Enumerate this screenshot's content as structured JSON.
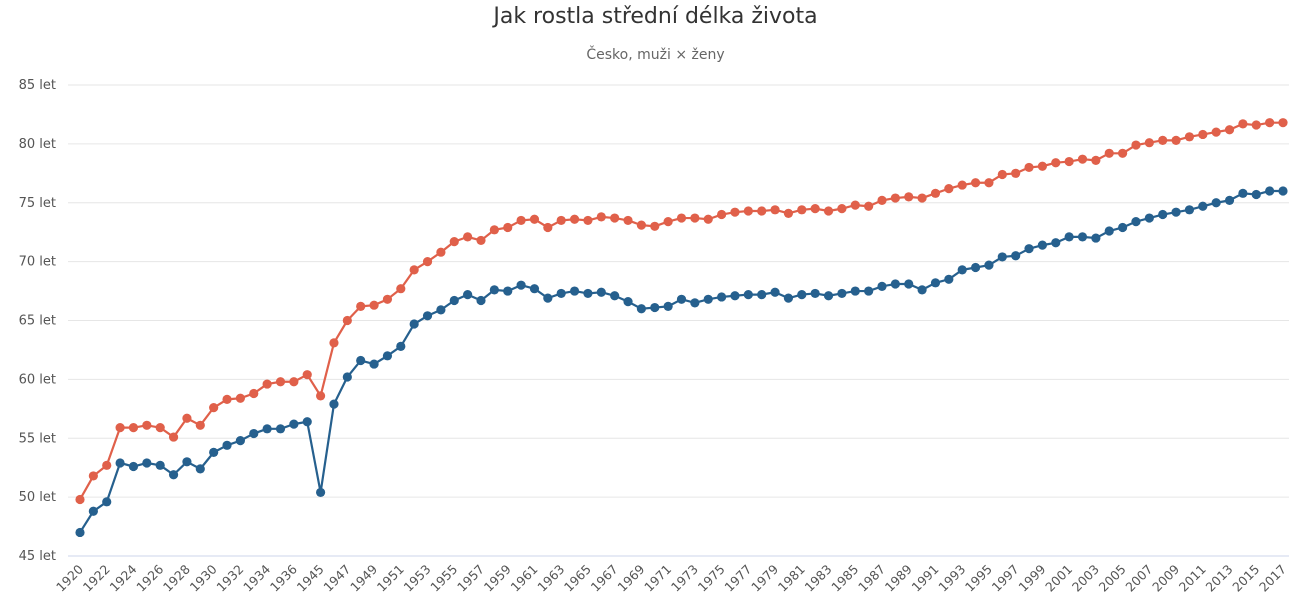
{
  "chart_data": {
    "type": "line",
    "title": "Jak rostla střední délka života",
    "subtitle": "Česko, muži × ženy",
    "y_unit_suffix": " let",
    "ylim": [
      45,
      85
    ],
    "yticks": [
      45,
      50,
      55,
      60,
      65,
      70,
      75,
      80,
      85
    ],
    "x": [
      "1920",
      "1921",
      "1922",
      "1923",
      "1924",
      "1925",
      "1926",
      "1927",
      "1928",
      "1929",
      "1930",
      "1931",
      "1932",
      "1933",
      "1934",
      "1935",
      "1936",
      "1937",
      "1945",
      "1946",
      "1947",
      "1948",
      "1949",
      "1950",
      "1951",
      "1952",
      "1953",
      "1954",
      "1955",
      "1956",
      "1957",
      "1958",
      "1959",
      "1960",
      "1961",
      "1962",
      "1963",
      "1964",
      "1965",
      "1966",
      "1967",
      "1968",
      "1969",
      "1970",
      "1971",
      "1972",
      "1973",
      "1974",
      "1975",
      "1976",
      "1977",
      "1978",
      "1979",
      "1980",
      "1981",
      "1982",
      "1983",
      "1984",
      "1985",
      "1986",
      "1987",
      "1988",
      "1989",
      "1990",
      "1991",
      "1992",
      "1993",
      "1994",
      "1995",
      "1996",
      "1997",
      "1998",
      "1999",
      "2000",
      "2001",
      "2002",
      "2003",
      "2004",
      "2005",
      "2006",
      "2007",
      "2008",
      "2009",
      "2010",
      "2011",
      "2012",
      "2013",
      "2014",
      "2015",
      "2016",
      "2017"
    ],
    "x_tick_labels": [
      "1920",
      "1922",
      "1924",
      "1926",
      "1928",
      "1930",
      "1932",
      "1934",
      "1936",
      "1945",
      "1947",
      "1949",
      "1951",
      "1953",
      "1955",
      "1957",
      "1959",
      "1961",
      "1963",
      "1965",
      "1967",
      "1969",
      "1971",
      "1973",
      "1975",
      "1977",
      "1979",
      "1981",
      "1983",
      "1985",
      "1987",
      "1989",
      "1991",
      "1993",
      "1995",
      "1997",
      "1999",
      "2001",
      "2003",
      "2005",
      "2007",
      "2009",
      "2011",
      "2013",
      "2015",
      "2017"
    ],
    "series": [
      {
        "name": "ženy",
        "color": "#e0604a",
        "values": [
          49.8,
          51.8,
          52.7,
          55.9,
          55.9,
          56.1,
          55.9,
          55.1,
          56.7,
          56.1,
          57.6,
          58.3,
          58.4,
          58.8,
          59.6,
          59.8,
          59.8,
          60.4,
          58.6,
          63.1,
          65.0,
          66.2,
          66.3,
          66.8,
          67.7,
          69.3,
          70.0,
          70.8,
          71.7,
          72.1,
          71.8,
          72.7,
          72.9,
          73.5,
          73.6,
          72.9,
          73.5,
          73.6,
          73.5,
          73.8,
          73.7,
          73.5,
          73.1,
          73.0,
          73.4,
          73.7,
          73.7,
          73.6,
          74.0,
          74.2,
          74.3,
          74.3,
          74.4,
          74.1,
          74.4,
          74.5,
          74.3,
          74.5,
          74.8,
          74.7,
          75.2,
          75.4,
          75.5,
          75.4,
          75.8,
          76.2,
          76.5,
          76.7,
          76.7,
          77.4,
          77.5,
          78.0,
          78.1,
          78.4,
          78.5,
          78.7,
          78.6,
          79.2,
          79.2,
          79.9,
          80.1,
          80.3,
          80.3,
          80.6,
          80.8,
          81.0,
          81.2,
          81.7,
          81.6,
          81.8,
          81.8
        ]
      },
      {
        "name": "muži",
        "color": "#26608e",
        "values": [
          47.0,
          48.8,
          49.6,
          52.9,
          52.6,
          52.9,
          52.7,
          51.9,
          53.0,
          52.4,
          53.8,
          54.4,
          54.8,
          55.4,
          55.8,
          55.8,
          56.2,
          56.4,
          50.4,
          57.9,
          60.2,
          61.6,
          61.3,
          62.0,
          62.8,
          64.7,
          65.4,
          65.9,
          66.7,
          67.2,
          66.7,
          67.6,
          67.5,
          68.0,
          67.7,
          66.9,
          67.3,
          67.5,
          67.3,
          67.4,
          67.1,
          66.6,
          66.0,
          66.1,
          66.2,
          66.8,
          66.5,
          66.8,
          67.0,
          67.1,
          67.2,
          67.2,
          67.4,
          66.9,
          67.2,
          67.3,
          67.1,
          67.3,
          67.5,
          67.5,
          67.9,
          68.1,
          68.1,
          67.6,
          68.2,
          68.5,
          69.3,
          69.5,
          69.7,
          70.4,
          70.5,
          71.1,
          71.4,
          71.6,
          72.1,
          72.1,
          72.0,
          72.6,
          72.9,
          73.4,
          73.7,
          74.0,
          74.2,
          74.4,
          74.7,
          75.0,
          75.2,
          75.8,
          75.7,
          76.0,
          76.0
        ]
      }
    ]
  }
}
